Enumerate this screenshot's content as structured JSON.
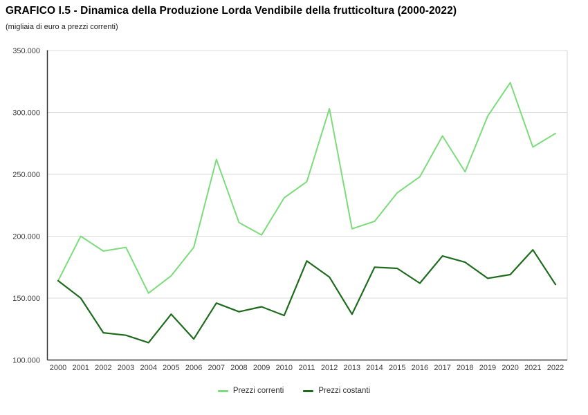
{
  "title": "GRAFICO I.5 - Dinamica della Produzione Lorda Vendibile della frutticoltura (2000-2022)",
  "subtitle": "(migliaia di euro a prezzi correnti)",
  "colors": {
    "prezzi_correnti": "#7cdc7c",
    "prezzi_costanti": "#1e6b1e",
    "gridline": "#dbdbdb",
    "axis": "#333333",
    "right_border": "#d6d6d6",
    "tick_text": "#3c3c3c"
  },
  "chart_data": {
    "type": "line",
    "x": [
      2000,
      2001,
      2002,
      2003,
      2004,
      2005,
      2006,
      2007,
      2008,
      2009,
      2010,
      2011,
      2012,
      2013,
      2014,
      2015,
      2016,
      2017,
      2018,
      2019,
      2020,
      2021,
      2022
    ],
    "series": [
      {
        "name": "Prezzi correnti",
        "color": "#7cdc7c",
        "values": [
          164000,
          200000,
          188000,
          191000,
          154000,
          168000,
          191000,
          262000,
          211000,
          201000,
          231000,
          244000,
          303000,
          206000,
          212000,
          235000,
          248000,
          281000,
          252000,
          297000,
          324000,
          272000,
          283000
        ]
      },
      {
        "name": "Prezzi costanti",
        "color": "#1e6b1e",
        "values": [
          164000,
          150000,
          122000,
          120000,
          114000,
          137000,
          117000,
          146000,
          139000,
          143000,
          136000,
          180000,
          167000,
          137000,
          175000,
          174000,
          162000,
          184000,
          179000,
          166000,
          169000,
          189000,
          161000
        ]
      }
    ],
    "ylim": [
      100000,
      350000
    ],
    "ytick_step": 50000,
    "ytick_labels": [
      "100.000",
      "150.000",
      "200.000",
      "250.000",
      "300.000",
      "350.000"
    ],
    "xlabel": "",
    "ylabel": "",
    "grid": "horizontal",
    "legend_position": "bottom"
  }
}
